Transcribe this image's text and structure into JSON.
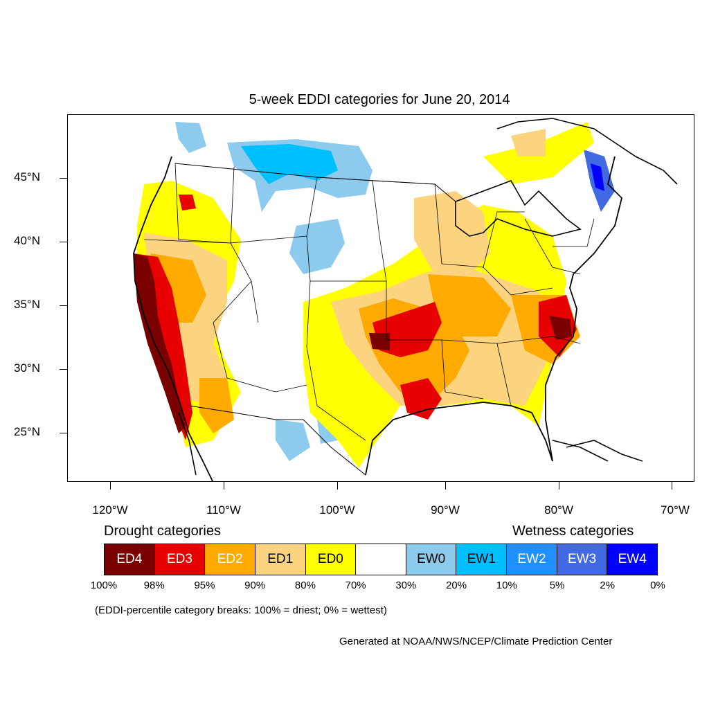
{
  "title": "5-week EDDI categories for June 20, 2014",
  "axes": {
    "lat_labels": [
      "45°N",
      "40°N",
      "35°N",
      "30°N",
      "25°N"
    ],
    "lon_labels": [
      "120°W",
      "110°W",
      "100°W",
      "90°W",
      "80°W",
      "70°W"
    ]
  },
  "legend": {
    "drought_heading": "Drought categories",
    "wetness_heading": "Wetness categories",
    "categories": [
      {
        "label": "ED4",
        "color": "#7a0000",
        "text_color": "#ffffff"
      },
      {
        "label": "ED3",
        "color": "#e60000",
        "text_color": "#ffffff"
      },
      {
        "label": "ED2",
        "color": "#ffaa00",
        "text_color": "#ffffff"
      },
      {
        "label": "ED1",
        "color": "#fcd37f",
        "text_color": "#000000"
      },
      {
        "label": "ED0",
        "color": "#ffff00",
        "text_color": "#000000"
      },
      {
        "label": "",
        "color": "#ffffff",
        "text_color": "#000000"
      },
      {
        "label": "EW0",
        "color": "#8ccbee",
        "text_color": "#000000"
      },
      {
        "label": "EW1",
        "color": "#00bfff",
        "text_color": "#000000"
      },
      {
        "label": "EW2",
        "color": "#1e90ff",
        "text_color": "#ffffff"
      },
      {
        "label": "EW3",
        "color": "#4169e1",
        "text_color": "#ffffff"
      },
      {
        "label": "EW4",
        "color": "#0000ff",
        "text_color": "#ffffff"
      }
    ],
    "breaks": [
      "100%",
      "98%",
      "95%",
      "90%",
      "80%",
      "70%",
      "30%",
      "20%",
      "10%",
      "5%",
      "2%",
      "0%"
    ]
  },
  "note": "(EDDI-percentile category breaks: 100% = driest; 0% = wettest)",
  "credit": "Generated at NOAA/NWS/NCEP/Climate Prediction Center"
}
